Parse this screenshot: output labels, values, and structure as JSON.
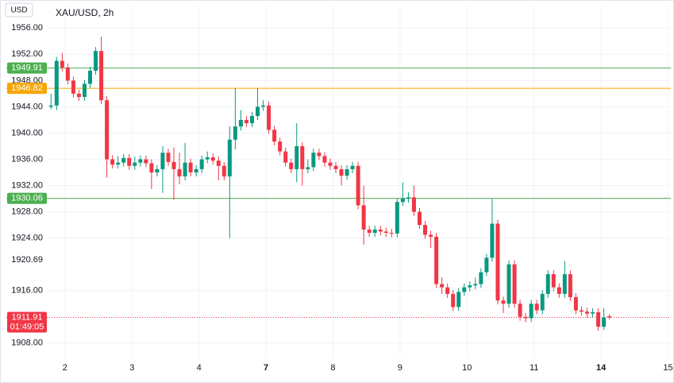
{
  "chart_data": {
    "type": "candlestick",
    "title": "XAU/USD, 2h",
    "currency": "USD",
    "up_color": "#089981",
    "down_color": "#f23645",
    "grid": true,
    "xlim": [
      -8,
      111
    ],
    "ylim": [
      1905.8,
      1959.3
    ],
    "xticks": [
      {
        "value": 2.5,
        "label": "2"
      },
      {
        "value": 14.5,
        "label": "3"
      },
      {
        "value": 26.5,
        "label": "4"
      },
      {
        "value": 38.5,
        "label": "7",
        "bold": true
      },
      {
        "value": 50.5,
        "label": "8"
      },
      {
        "value": 62.5,
        "label": "9"
      },
      {
        "value": 74.5,
        "label": "10"
      },
      {
        "value": 86.5,
        "label": "11"
      },
      {
        "value": 98.5,
        "label": "14",
        "bold": true
      },
      {
        "value": 110.5,
        "label": "15"
      }
    ],
    "yticks": [
      {
        "value": 1956,
        "label": "1956.00"
      },
      {
        "value": 1952,
        "label": "1952.00"
      },
      {
        "value": 1948,
        "label": "1948.00"
      },
      {
        "value": 1944,
        "label": "1944.00"
      },
      {
        "value": 1940,
        "label": "1940.00"
      },
      {
        "value": 1936,
        "label": "1936.00"
      },
      {
        "value": 1932,
        "label": "1932.00"
      },
      {
        "value": 1928,
        "label": "1928.00"
      },
      {
        "value": 1924,
        "label": "1924.00"
      },
      {
        "value": 1916,
        "label": "1916.00"
      },
      {
        "value": 1908,
        "label": "1908.00"
      }
    ],
    "marker_label": {
      "value": 1920.69
    },
    "price_lines": [
      {
        "value": 1949.91,
        "color": "#4caf50"
      },
      {
        "value": 1946.82,
        "color": "#f7a600"
      },
      {
        "value": 1930.06,
        "color": "#4caf50"
      }
    ],
    "last_price": {
      "value": 1911.91,
      "color": "#f23645",
      "countdown": "01:49:05"
    },
    "open": [
      1944.0,
      1944.2,
      1951.0,
      1950.0,
      1948.0,
      1946.0,
      1945.5,
      1947.5,
      1949.5,
      1952.5,
      1945.0,
      1936.0,
      1935.2,
      1935.5,
      1936.2,
      1935.0,
      1935.5,
      1936.0,
      1935.4,
      1934.0,
      1934.5,
      1937.0,
      1935.6,
      1934.5,
      1933.4,
      1935.5,
      1934.0,
      1934.5,
      1936.0,
      1936.3,
      1935.8,
      1935.0,
      1933.4,
      1939.0,
      1941.0,
      1942.0,
      1941.5,
      1942.6,
      1944.0,
      1944.2,
      1940.5,
      1938.7,
      1937.2,
      1935.5,
      1934.5,
      1938.0,
      1934.5,
      1934.8,
      1937.0,
      1936.5,
      1935.5,
      1935.0,
      1934.5,
      1933.5,
      1934.5,
      1935.0,
      1929.0,
      1925.3,
      1924.8,
      1925.3,
      1925.0,
      1924.8,
      1924.7,
      1929.5,
      1930.0,
      1930.2,
      1928.0,
      1926.0,
      1924.5,
      1924.2,
      1917.0,
      1916.5,
      1915.5,
      1913.5,
      1915.8,
      1916.5,
      1916.8,
      1917.0,
      1918.8,
      1921.0,
      1926.2,
      1914.5,
      1914.0,
      1920.0,
      1914.0,
      1912.0,
      1911.8,
      1914.0,
      1913.0,
      1915.5,
      1918.5,
      1916.5,
      1915.5,
      1918.5,
      1915.0,
      1913.0,
      1912.8,
      1912.5,
      1912.7,
      1910.5,
      1912.1
    ],
    "high": [
      1946.0,
      1951.6,
      1952.2,
      1950.6,
      1948.6,
      1946.6,
      1948.1,
      1950.1,
      1953.1,
      1954.7,
      1945.6,
      1936.6,
      1936.5,
      1936.8,
      1936.8,
      1936.4,
      1936.6,
      1936.6,
      1936.0,
      1935.1,
      1938.0,
      1937.6,
      1937.8,
      1937.0,
      1938.5,
      1936.1,
      1935.1,
      1936.6,
      1937.2,
      1936.9,
      1936.4,
      1935.6,
      1941.0,
      1946.9,
      1943.5,
      1942.6,
      1943.2,
      1946.8,
      1945.0,
      1944.8,
      1941.1,
      1939.3,
      1937.8,
      1936.1,
      1941.5,
      1938.6,
      1936.0,
      1937.6,
      1937.6,
      1937.1,
      1936.1,
      1935.6,
      1935.1,
      1935.1,
      1935.6,
      1935.6,
      1932.0,
      1925.9,
      1925.9,
      1925.9,
      1925.6,
      1925.4,
      1930.1,
      1932.5,
      1931.0,
      1932.0,
      1928.6,
      1926.6,
      1925.1,
      1924.8,
      1918.0,
      1917.1,
      1916.1,
      1916.4,
      1917.1,
      1917.4,
      1918.0,
      1919.4,
      1921.6,
      1930.0,
      1926.8,
      1915.1,
      1920.6,
      1920.6,
      1914.6,
      1912.6,
      1914.6,
      1914.6,
      1916.1,
      1919.1,
      1919.1,
      1917.1,
      1920.5,
      1919.1,
      1915.6,
      1913.6,
      1913.4,
      1913.3,
      1913.3,
      1913.3,
      1912.4
    ],
    "low": [
      1943.6,
      1943.5,
      1949.4,
      1947.4,
      1945.4,
      1944.9,
      1944.9,
      1946.9,
      1948.9,
      1944.4,
      1933.2,
      1934.6,
      1934.6,
      1934.9,
      1934.4,
      1934.4,
      1934.9,
      1934.8,
      1931.5,
      1933.4,
      1930.9,
      1935.0,
      1929.8,
      1932.2,
      1932.8,
      1933.4,
      1933.4,
      1933.9,
      1935.4,
      1935.2,
      1932.8,
      1932.8,
      1924.0,
      1937.5,
      1940.4,
      1940.9,
      1940.9,
      1942.0,
      1943.4,
      1939.9,
      1938.1,
      1936.6,
      1934.9,
      1933.9,
      1932.5,
      1932.0,
      1933.9,
      1934.2,
      1935.9,
      1934.9,
      1934.4,
      1933.9,
      1932.0,
      1932.9,
      1933.9,
      1928.4,
      1923.0,
      1924.2,
      1924.2,
      1924.4,
      1924.2,
      1924.1,
      1924.1,
      1928.9,
      1929.4,
      1927.4,
      1925.4,
      1923.9,
      1922.5,
      1916.4,
      1915.5,
      1914.9,
      1912.9,
      1912.9,
      1915.2,
      1915.9,
      1916.2,
      1916.4,
      1918.2,
      1920.4,
      1913.9,
      1912.6,
      1913.4,
      1913.4,
      1911.4,
      1911.2,
      1911.2,
      1912.4,
      1912.4,
      1914.9,
      1915.9,
      1914.9,
      1914.9,
      1914.4,
      1912.4,
      1912.2,
      1911.9,
      1911.9,
      1909.9,
      1910.0,
      1911.6
    ],
    "close": [
      1944.2,
      1951.0,
      1950.0,
      1948.0,
      1946.0,
      1945.5,
      1947.5,
      1949.5,
      1952.5,
      1945.0,
      1936.0,
      1935.2,
      1935.5,
      1936.2,
      1935.0,
      1935.5,
      1936.0,
      1935.4,
      1934.0,
      1934.5,
      1937.0,
      1935.6,
      1934.5,
      1933.4,
      1935.5,
      1934.0,
      1934.5,
      1936.0,
      1936.3,
      1935.8,
      1935.0,
      1933.4,
      1939.0,
      1941.0,
      1942.0,
      1941.5,
      1942.6,
      1944.0,
      1944.2,
      1940.5,
      1938.7,
      1937.2,
      1935.5,
      1934.5,
      1938.0,
      1934.5,
      1934.8,
      1937.0,
      1936.5,
      1935.5,
      1935.0,
      1934.5,
      1933.5,
      1934.5,
      1935.0,
      1929.0,
      1925.3,
      1924.8,
      1925.3,
      1925.0,
      1924.8,
      1924.7,
      1929.5,
      1930.0,
      1930.2,
      1928.0,
      1926.0,
      1924.5,
      1924.2,
      1917.0,
      1916.5,
      1915.5,
      1913.5,
      1915.8,
      1916.5,
      1916.8,
      1917.0,
      1918.8,
      1921.0,
      1926.2,
      1914.5,
      1914.0,
      1920.0,
      1914.0,
      1912.0,
      1911.8,
      1914.0,
      1913.0,
      1915.5,
      1918.5,
      1916.5,
      1915.5,
      1918.5,
      1915.0,
      1913.0,
      1912.8,
      1912.5,
      1912.7,
      1910.5,
      1911.9,
      1911.91
    ]
  }
}
